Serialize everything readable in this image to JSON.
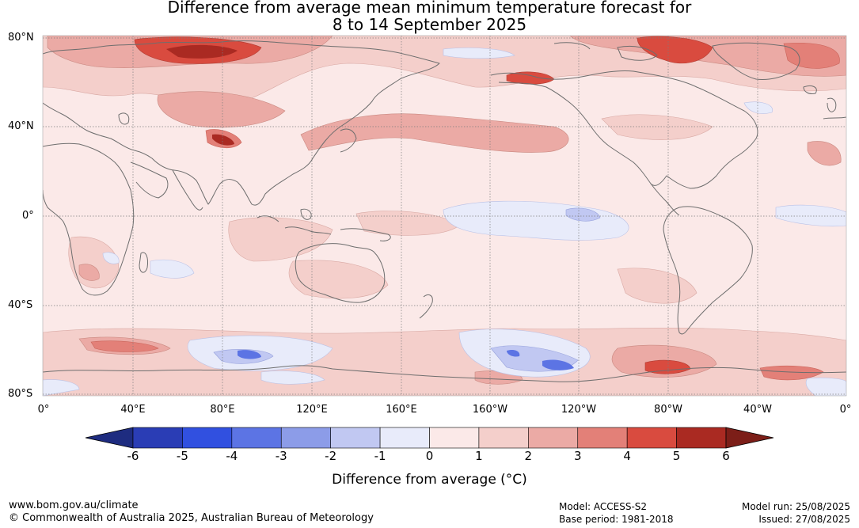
{
  "title": {
    "line1": "Difference from average mean minimum temperature forecast for",
    "line2": "8 to 14 September 2025"
  },
  "map": {
    "lat_labels": [
      "80°N",
      "40°N",
      "0°",
      "40°S",
      "80°S"
    ],
    "lon_labels": [
      "0°",
      "40°E",
      "80°E",
      "120°E",
      "160°E",
      "160°W",
      "120°W",
      "80°W",
      "40°W",
      "0°"
    ],
    "ocean_base_color": "#fbe9e8",
    "coastline_color": "#6e6e6e",
    "gridline_color": "#7d7d7d"
  },
  "colorbar": {
    "ticks": [
      "-6",
      "-5",
      "-4",
      "-3",
      "-2",
      "-1",
      "0",
      "1",
      "2",
      "3",
      "4",
      "5",
      "6"
    ],
    "colors": [
      "#1e2c80",
      "#2a3db5",
      "#3150e0",
      "#5c74e4",
      "#8c9ce8",
      "#c1c8f2",
      "#e8ebfa",
      "#fbe9e8",
      "#f4cfcb",
      "#ebaaa5",
      "#e38078",
      "#d94b3f",
      "#aa2a22",
      "#7c1e18"
    ],
    "label": "Difference from average (°C)"
  },
  "footer": {
    "url": "www.bom.gov.au/climate",
    "copyright": "© Commonwealth of Australia 2025, Australian Bureau of Meteorology",
    "model": "Model: ACCESS-S2",
    "base_period": "Base period: 1981-2018",
    "model_run": "Model run: 25/08/2025",
    "issued": "Issued: 27/08/2025"
  }
}
